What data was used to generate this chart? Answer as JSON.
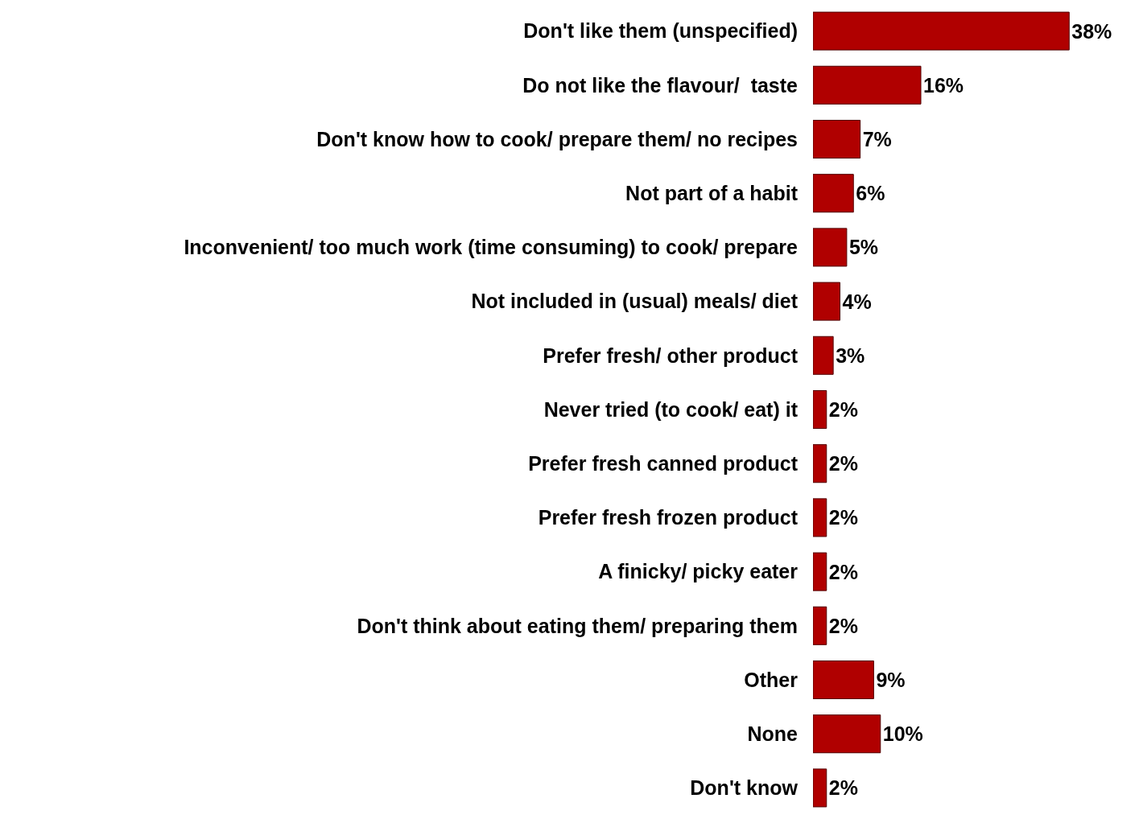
{
  "chart_data": {
    "type": "bar",
    "orientation": "horizontal",
    "categories": [
      "Don't like them (unspecified)",
      "Do not like the flavour/  taste",
      "Don't know how to cook/ prepare them/ no recipes",
      "Not part of a habit",
      "Inconvenient/ too much work (time consuming) to cook/ prepare",
      "Not included in (usual) meals/ diet",
      "Prefer fresh/ other product",
      "Never tried (to cook/ eat) it",
      "Prefer fresh canned product",
      "Prefer fresh frozen product",
      "A finicky/ picky eater",
      "Don't think about eating them/ preparing them",
      "Other",
      "None",
      "Don't know"
    ],
    "values": [
      38,
      16,
      7,
      6,
      5,
      4,
      3,
      2,
      2,
      2,
      2,
      2,
      9,
      10,
      2
    ],
    "value_labels": [
      "38%",
      "16%",
      "7%",
      "6%",
      "5%",
      "4%",
      "3%",
      "2%",
      "2%",
      "2%",
      "2%",
      "2%",
      "9%",
      "10%",
      "2%"
    ],
    "color": "#b00000",
    "tick_labels": "y",
    "legend": false
  }
}
